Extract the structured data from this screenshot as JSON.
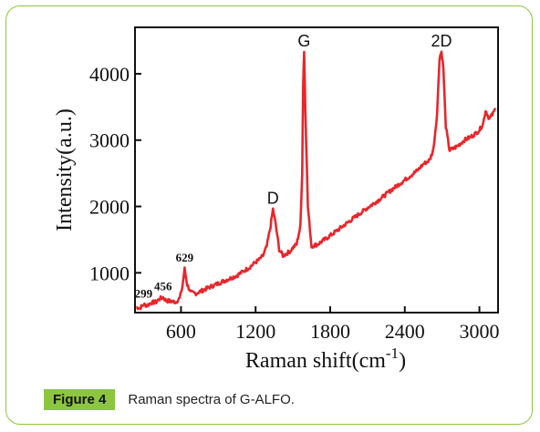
{
  "figure": {
    "label": "Figure 4",
    "caption": "Raman spectra of G-ALFO."
  },
  "chart_data": {
    "type": "line",
    "title": "",
    "xlabel_main": "Raman shift(cm",
    "xlabel_sup": "-1",
    "xlabel_close": ")",
    "ylabel": "Intensity(a.u.)",
    "xlim": [
      230,
      3150
    ],
    "ylim": [
      400,
      4700
    ],
    "xticks": [
      600,
      1200,
      1800,
      2400,
      3000
    ],
    "yticks": [
      1000,
      2000,
      3000,
      4000
    ],
    "line_color": "#e8262b",
    "series": [
      {
        "x": [
          240,
          270,
          299,
          330,
          360,
          400,
          430,
          456,
          480,
          520,
          560,
          590,
          610,
          629,
          650,
          680,
          720,
          780,
          850,
          950,
          1050,
          1100,
          1150,
          1180,
          1200,
          1230,
          1260,
          1290,
          1320,
          1340,
          1360,
          1390,
          1420,
          1450,
          1480,
          1500,
          1530,
          1560,
          1575,
          1582,
          1590,
          1600,
          1620,
          1650,
          1700,
          1800,
          1900,
          2000,
          2100,
          2200,
          2300,
          2400,
          2500,
          2550,
          2600,
          2630,
          2660,
          2680,
          2695,
          2710,
          2730,
          2760,
          2790,
          2830,
          2880,
          2950,
          3000,
          3030,
          3050,
          3080,
          3110,
          3130
        ],
        "y": [
          480,
          470,
          520,
          510,
          550,
          560,
          610,
          630,
          580,
          570,
          560,
          620,
          780,
          1060,
          820,
          700,
          690,
          740,
          800,
          880,
          960,
          1020,
          1080,
          1130,
          1160,
          1200,
          1260,
          1400,
          1700,
          1960,
          1750,
          1350,
          1260,
          1290,
          1330,
          1380,
          1430,
          1700,
          2500,
          3800,
          4330,
          3500,
          2000,
          1400,
          1430,
          1560,
          1700,
          1840,
          1980,
          2110,
          2260,
          2400,
          2540,
          2640,
          2700,
          2860,
          3400,
          4250,
          4330,
          4100,
          3200,
          2850,
          2870,
          2920,
          3000,
          3070,
          3150,
          3250,
          3450,
          3320,
          3400,
          3480
        ]
      }
    ],
    "annotations": [
      {
        "text": "299",
        "x": 299,
        "y": 520,
        "style": "small"
      },
      {
        "text": "456",
        "x": 456,
        "y": 630,
        "style": "small"
      },
      {
        "text": "629",
        "x": 629,
        "y": 1060,
        "style": "small"
      },
      {
        "text": "D",
        "x": 1340,
        "y": 1960,
        "style": "big"
      },
      {
        "text": "G",
        "x": 1590,
        "y": 4330,
        "style": "big"
      },
      {
        "text": "2D",
        "x": 2695,
        "y": 4330,
        "style": "big"
      }
    ]
  }
}
